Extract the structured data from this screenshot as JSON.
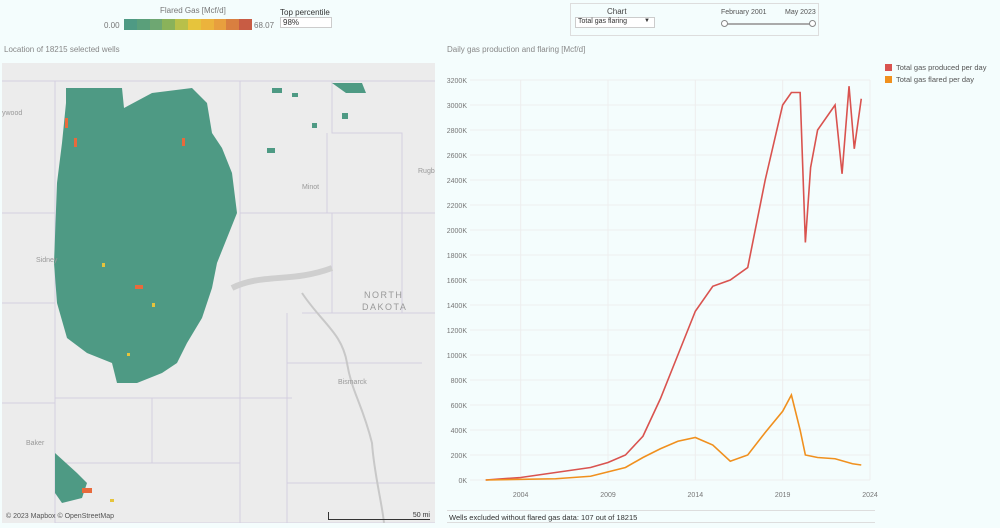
{
  "legend": {
    "title": "Flared Gas [Mcf/d]",
    "min": "0.00",
    "max": "68.07",
    "colors": [
      "#4e9a84",
      "#5a9f7a",
      "#6ea772",
      "#8ab25a",
      "#b8c04a",
      "#e6c43c",
      "#ecb33c",
      "#e89f3e",
      "#d97f40",
      "#c85c44"
    ]
  },
  "percentile": {
    "label": "Top percentile",
    "value": "98%"
  },
  "control": {
    "label": "Chart",
    "selected": "Total gas flaring",
    "from": "February 2001",
    "to": "May 2023"
  },
  "map": {
    "title": "Location of 18215 selected wells",
    "attribution": "© 2023 Mapbox  © OpenStreetMap",
    "scale": "50 mi",
    "places": [
      {
        "name": "Minot"
      },
      {
        "name": "Bismarck"
      },
      {
        "name": "NORTH"
      },
      {
        "name": "DAKOTA"
      },
      {
        "name": "Sidney"
      },
      {
        "name": "Baker"
      },
      {
        "name": "ywood"
      },
      {
        "name": "Rugb"
      }
    ],
    "well_color": "#4e9a84"
  },
  "footer": "Wells excluded without flared gas data: 107 out of 18215",
  "chart_data": {
    "type": "line",
    "title": "Daily gas production and flaring [Mcf/d]",
    "xlabel": "",
    "ylabel": "",
    "xticks": [
      "2004",
      "2009",
      "2014",
      "2019",
      "2024"
    ],
    "xlim": [
      2001.1,
      2024
    ],
    "yticks": [
      "0K",
      "200K",
      "400K",
      "600K",
      "800K",
      "1000K",
      "1200K",
      "1400K",
      "1600K",
      "1800K",
      "2000K",
      "2200K",
      "2400K",
      "2600K",
      "2800K",
      "3000K",
      "3200K"
    ],
    "ylim": [
      0,
      3200
    ],
    "legend_position": "right",
    "series": [
      {
        "name": "Total gas produced per day",
        "color": "#d9534f",
        "points": [
          [
            2002,
            0
          ],
          [
            2004,
            20
          ],
          [
            2006,
            60
          ],
          [
            2008,
            100
          ],
          [
            2009,
            140
          ],
          [
            2010,
            200
          ],
          [
            2011,
            350
          ],
          [
            2012,
            650
          ],
          [
            2013,
            1000
          ],
          [
            2014,
            1350
          ],
          [
            2015,
            1550
          ],
          [
            2016,
            1600
          ],
          [
            2017,
            1700
          ],
          [
            2018,
            2400
          ],
          [
            2019,
            3000
          ],
          [
            2019.5,
            3100
          ],
          [
            2020,
            3100
          ],
          [
            2020.3,
            1900
          ],
          [
            2020.6,
            2500
          ],
          [
            2021,
            2800
          ],
          [
            2022,
            3000
          ],
          [
            2022.4,
            2450
          ],
          [
            2022.8,
            3150
          ],
          [
            2023.1,
            2650
          ],
          [
            2023.5,
            3050
          ]
        ]
      },
      {
        "name": "Total gas flared per day",
        "color": "#f0901e",
        "points": [
          [
            2002,
            0
          ],
          [
            2006,
            10
          ],
          [
            2008,
            30
          ],
          [
            2010,
            100
          ],
          [
            2011,
            180
          ],
          [
            2012,
            250
          ],
          [
            2013,
            310
          ],
          [
            2014,
            340
          ],
          [
            2015,
            280
          ],
          [
            2016,
            150
          ],
          [
            2017,
            200
          ],
          [
            2018,
            380
          ],
          [
            2019,
            550
          ],
          [
            2019.5,
            680
          ],
          [
            2020,
            400
          ],
          [
            2020.3,
            200
          ],
          [
            2021,
            180
          ],
          [
            2022,
            170
          ],
          [
            2023,
            130
          ],
          [
            2023.5,
            120
          ]
        ]
      }
    ]
  }
}
